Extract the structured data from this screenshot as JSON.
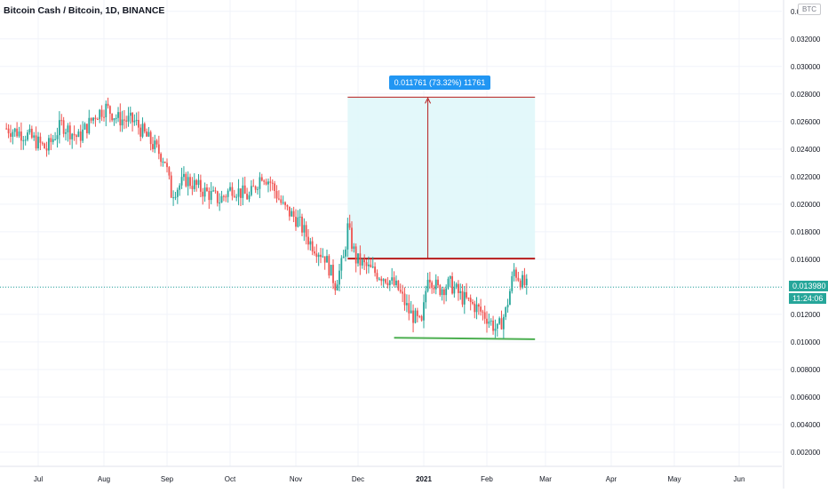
{
  "header": {
    "symbol_title": "Bitcoin Cash / Bitcoin, 1D, BINANCE"
  },
  "axis_badge": "BTC",
  "colors": {
    "up": "#26a69a",
    "down": "#ef5350",
    "resistance_line": "#b71c1c",
    "support_line": "#4caf50",
    "measure_box": "#e0f7fa",
    "measure_label_bg": "#2196f3",
    "current_price": "#26a69a",
    "grid": "#f0f3fa"
  },
  "chart_data": {
    "type": "candlestick",
    "title": "Bitcoin Cash / Bitcoin, 1D, BINANCE",
    "x_ticks": [
      "Jul",
      "Aug",
      "Sep",
      "Oct",
      "Nov",
      "Dec",
      "2021",
      "Feb",
      "Mar",
      "Apr",
      "May",
      "Jun"
    ],
    "y_ticks": [
      "0.002000",
      "0.004000",
      "0.006000",
      "0.008000",
      "0.010000",
      "0.012000",
      "0.014000",
      "0.016000",
      "0.018000",
      "0.020000",
      "0.022000",
      "0.024000",
      "0.026000",
      "0.028000",
      "0.030000",
      "0.032000",
      "0.034000"
    ],
    "ylim": [
      0.0,
      0.0345
    ],
    "current_price": "0.013980",
    "countdown": "11:24:06",
    "measure_label": "0.011761 (73.32%) 11761",
    "resistance_level": 0.01605,
    "support_level_start": 0.0103,
    "support_level_end": 0.0102,
    "measure_target": 0.02777,
    "trend_points": [
      [
        "2020-06-16",
        0.0255
      ],
      [
        "2020-06-26",
        0.025
      ],
      [
        "2020-07-05",
        0.024
      ],
      [
        "2020-07-12",
        0.0258
      ],
      [
        "2020-07-20",
        0.0248
      ],
      [
        "2020-07-28",
        0.0265
      ],
      [
        "2020-08-02",
        0.027
      ],
      [
        "2020-08-08",
        0.0262
      ],
      [
        "2020-08-16",
        0.026
      ],
      [
        "2020-08-24",
        0.0245
      ],
      [
        "2020-08-31",
        0.0232
      ],
      [
        "2020-09-03",
        0.0208
      ],
      [
        "2020-09-10",
        0.0218
      ],
      [
        "2020-09-18",
        0.021
      ],
      [
        "2020-09-26",
        0.0203
      ],
      [
        "2020-10-02",
        0.0212
      ],
      [
        "2020-10-10",
        0.0205
      ],
      [
        "2020-10-16",
        0.0222
      ],
      [
        "2020-10-20",
        0.0216
      ],
      [
        "2020-10-26",
        0.0198
      ],
      [
        "2020-11-02",
        0.0188
      ],
      [
        "2020-11-08",
        0.0172
      ],
      [
        "2020-11-15",
        0.0162
      ],
      [
        "2020-11-20",
        0.0142
      ],
      [
        "2020-11-24",
        0.016
      ],
      [
        "2020-11-26",
        0.0183
      ],
      [
        "2020-11-30",
        0.016
      ],
      [
        "2020-12-07",
        0.0152
      ],
      [
        "2020-12-15",
        0.0146
      ],
      [
        "2020-12-20",
        0.0138
      ],
      [
        "2020-12-25",
        0.0122
      ],
      [
        "2020-12-31",
        0.0112
      ],
      [
        "2021-01-03",
        0.015
      ],
      [
        "2021-01-08",
        0.0138
      ],
      [
        "2021-01-14",
        0.0142
      ],
      [
        "2021-01-20",
        0.0132
      ],
      [
        "2021-01-26",
        0.0126
      ],
      [
        "2021-02-01",
        0.0118
      ],
      [
        "2021-02-06",
        0.0108
      ],
      [
        "2021-02-10",
        0.0122
      ],
      [
        "2021-02-14",
        0.0152
      ],
      [
        "2021-02-18",
        0.0143
      ],
      [
        "2021-02-20",
        0.014
      ]
    ]
  }
}
